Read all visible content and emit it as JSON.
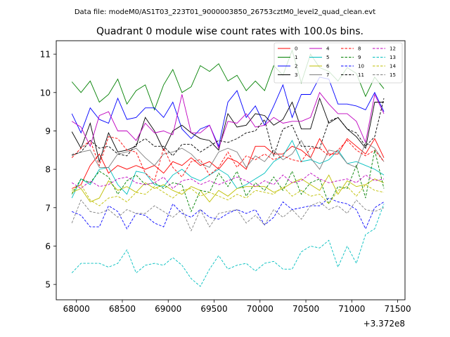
{
  "chart_data": {
    "type": "line",
    "suptitle": "Data file: modeM0/AS1T03_223T01_9000003850_26753cztM0_level2_quad_clean.evt",
    "title": "Quadrant 0 module wise count rates with 100.0s bins.",
    "xlabel": "",
    "ylabel": "",
    "x_offset_label": "+3.372e8",
    "xlim": [
      67780,
      71580
    ],
    "ylim": [
      4.6,
      11.35
    ],
    "xticks": [
      68000,
      68500,
      69000,
      69500,
      70000,
      70500,
      71000,
      71500
    ],
    "yticks": [
      5,
      6,
      7,
      8,
      9,
      10,
      11
    ],
    "grid": false,
    "legend_position": "top-right",
    "x": [
      67950,
      68050,
      68150,
      68250,
      68350,
      68450,
      68550,
      68650,
      68750,
      68850,
      68950,
      69050,
      69150,
      69250,
      69350,
      69450,
      69550,
      69650,
      69750,
      69850,
      69950,
      70050,
      70150,
      70250,
      70350,
      70450,
      70550,
      70650,
      70750,
      70850,
      70950,
      71050,
      71150,
      71250,
      71350
    ],
    "series": [
      {
        "name": "0",
        "color": "#ff0000",
        "dash": "solid",
        "values": [
          7.5,
          7.6,
          8.1,
          8.4,
          7.9,
          8.1,
          8.0,
          8.1,
          8.0,
          8.1,
          7.9,
          8.2,
          8.1,
          8.3,
          8.1,
          8.2,
          8.0,
          8.3,
          8.2,
          8.0,
          8.6,
          8.6,
          8.4,
          8.4,
          8.6,
          8.5,
          8.3,
          8.8,
          8.4,
          8.4,
          8.8,
          8.6,
          8.4,
          8.8,
          8.3
        ]
      },
      {
        "name": "1",
        "color": "#008000",
        "dash": "solid",
        "values": [
          10.28,
          10.0,
          10.3,
          9.75,
          9.95,
          10.35,
          9.7,
          10.05,
          10.2,
          9.55,
          10.2,
          10.6,
          10.0,
          10.15,
          10.7,
          10.55,
          10.75,
          10.3,
          10.45,
          10.05,
          10.3,
          10.05,
          10.7,
          10.45,
          11.1,
          10.25,
          11.0,
          10.65,
          10.55,
          10.3,
          10.65,
          10.5,
          9.9,
          10.4,
          10.1
        ]
      },
      {
        "name": "2",
        "color": "#0000ff",
        "dash": "solid",
        "values": [
          9.45,
          8.95,
          9.6,
          9.3,
          9.2,
          9.85,
          9.3,
          9.35,
          9.6,
          9.6,
          9.35,
          9.75,
          9.05,
          8.8,
          9.05,
          9.15,
          8.6,
          9.75,
          10.05,
          9.35,
          9.65,
          9.15,
          9.65,
          10.2,
          9.35,
          9.95,
          9.95,
          10.4,
          10.35,
          9.7,
          9.7,
          9.65,
          9.55,
          10.0,
          9.5
        ]
      },
      {
        "name": "3",
        "color": "#000000",
        "dash": "solid",
        "values": [
          8.98,
          8.55,
          9.2,
          8.2,
          8.95,
          8.45,
          8.5,
          8.6,
          9.35,
          9.0,
          8.5,
          9.0,
          9.15,
          8.95,
          8.8,
          8.75,
          8.5,
          9.45,
          9.1,
          9.15,
          9.45,
          9.4,
          9.15,
          9.3,
          9.75,
          9.05,
          9.05,
          9.85,
          9.2,
          9.35,
          9.05,
          8.85,
          8.55,
          9.75,
          9.75
        ]
      },
      {
        "name": "4",
        "color": "#bf00bf",
        "dash": "solid",
        "values": [
          9.25,
          9.1,
          8.6,
          9.4,
          9.5,
          9.0,
          9.0,
          8.75,
          9.2,
          8.95,
          9.0,
          8.9,
          9.95,
          8.95,
          8.95,
          9.15,
          8.55,
          9.25,
          9.2,
          9.45,
          9.1,
          9.15,
          9.35,
          9.2,
          9.25,
          9.25,
          9.35,
          10.0,
          9.7,
          9.45,
          9.45,
          9.25,
          8.7,
          9.95,
          9.45
        ]
      },
      {
        "name": "5",
        "color": "#00bfbf",
        "dash": "solid",
        "values": [
          7.25,
          7.75,
          7.6,
          8.0,
          8.05,
          7.6,
          7.35,
          7.95,
          7.9,
          7.6,
          7.55,
          7.85,
          8.0,
          7.8,
          7.7,
          7.85,
          8.0,
          7.85,
          7.5,
          7.6,
          7.75,
          7.9,
          8.2,
          8.35,
          8.75,
          8.2,
          8.25,
          8.15,
          8.25,
          8.5,
          8.15,
          8.2,
          8.1,
          8.0,
          7.85
        ]
      },
      {
        "name": "6",
        "color": "#bfbf00",
        "dash": "solid",
        "values": [
          7.4,
          7.5,
          7.15,
          7.25,
          7.7,
          7.45,
          7.55,
          7.4,
          7.65,
          7.5,
          7.6,
          7.45,
          7.35,
          7.55,
          7.45,
          7.15,
          7.45,
          7.3,
          7.5,
          7.55,
          7.55,
          7.55,
          7.4,
          7.5,
          7.65,
          7.75,
          7.6,
          7.45,
          7.85,
          7.35,
          7.7,
          7.55,
          7.6,
          7.75,
          7.65
        ]
      },
      {
        "name": "7",
        "color": "#7f7f7f",
        "dash": "solid",
        "values": [
          8.35,
          8.45,
          8.5,
          8.05,
          8.05,
          8.4,
          8.45,
          8.55,
          8.3,
          8.1,
          8.4,
          8.45,
          8.55,
          8.4,
          8.15,
          8.05,
          8.45,
          8.55,
          8.45,
          8.05,
          8.35,
          8.2,
          8.5,
          8.25,
          8.4,
          8.75,
          8.3,
          8.0,
          8.5,
          8.45,
          8.15,
          8.05,
          8.7,
          8.55,
          8.2
        ]
      },
      {
        "name": "8",
        "color": "#ff0000",
        "dash": "dashed",
        "values": [
          8.3,
          8.55,
          8.75,
          8.1,
          8.85,
          8.8,
          8.5,
          8.45,
          7.9,
          7.7,
          8.55,
          8.05,
          7.8,
          8.2,
          8.25,
          7.85,
          8.05,
          8.45,
          8.05,
          8.35,
          8.25,
          8.4,
          8.25,
          8.35,
          8.25,
          8.2,
          8.55,
          8.55,
          8.35,
          8.5,
          8.75,
          8.5,
          8.35,
          8.5,
          8.2
        ]
      },
      {
        "name": "9",
        "color": "#008000",
        "dash": "dashed",
        "values": [
          7.35,
          7.75,
          7.65,
          7.95,
          7.8,
          7.35,
          7.7,
          7.85,
          7.6,
          7.65,
          7.5,
          7.65,
          7.6,
          6.9,
          7.45,
          7.4,
          7.9,
          7.55,
          7.95,
          7.3,
          7.65,
          7.45,
          7.8,
          7.45,
          7.95,
          7.35,
          7.65,
          7.75,
          7.1,
          7.55,
          7.5,
          8.1,
          7.25,
          8.5,
          7.5
        ]
      },
      {
        "name": "10",
        "color": "#0000ff",
        "dash": "dashed",
        "values": [
          6.9,
          6.8,
          6.5,
          6.5,
          7.05,
          6.9,
          6.45,
          6.85,
          6.8,
          6.6,
          6.5,
          7.1,
          6.85,
          6.75,
          6.95,
          6.75,
          6.7,
          6.85,
          6.95,
          6.85,
          6.95,
          6.55,
          6.75,
          7.15,
          6.95,
          7.0,
          7.05,
          7.05,
          7.25,
          7.15,
          7.1,
          6.95,
          6.45,
          7.0,
          7.15
        ]
      },
      {
        "name": "11",
        "color": "#000000",
        "dash": "dashed",
        "values": [
          8.38,
          8.45,
          8.75,
          8.55,
          8.6,
          8.4,
          8.35,
          8.65,
          8.8,
          8.6,
          8.6,
          8.35,
          8.65,
          8.65,
          8.45,
          8.6,
          8.75,
          8.7,
          8.8,
          8.95,
          9.0,
          9.3,
          8.35,
          9.05,
          9.15,
          8.6,
          8.6,
          8.55,
          9.25,
          9.35,
          9.05,
          8.95,
          8.6,
          8.85,
          9.85
        ]
      },
      {
        "name": "12",
        "color": "#bf00bf",
        "dash": "dashed",
        "values": [
          7.65,
          7.5,
          7.7,
          7.55,
          7.6,
          7.75,
          7.8,
          7.65,
          7.6,
          7.65,
          7.8,
          7.5,
          7.7,
          7.75,
          7.6,
          7.7,
          7.6,
          7.7,
          7.8,
          7.7,
          7.55,
          7.7,
          7.6,
          7.85,
          7.65,
          7.7,
          7.9,
          7.75,
          7.65,
          7.7,
          7.75,
          7.65,
          7.85,
          7.7,
          7.75
        ]
      },
      {
        "name": "13",
        "color": "#00bfbf",
        "dash": "dashed",
        "values": [
          5.3,
          5.55,
          5.55,
          5.55,
          5.45,
          5.55,
          5.9,
          5.3,
          5.5,
          5.55,
          5.5,
          5.7,
          5.5,
          5.15,
          4.95,
          5.4,
          5.75,
          5.4,
          5.5,
          5.55,
          5.35,
          5.55,
          5.6,
          5.4,
          5.4,
          5.85,
          6.0,
          5.95,
          6.15,
          5.45,
          6.0,
          5.55,
          6.3,
          6.45,
          7.1
        ]
      },
      {
        "name": "14",
        "color": "#bfbf00",
        "dash": "dashed",
        "values": [
          7.45,
          7.6,
          7.2,
          7.05,
          7.25,
          7.3,
          7.15,
          7.4,
          7.35,
          7.55,
          7.4,
          7.25,
          7.45,
          7.5,
          7.3,
          7.4,
          7.3,
          7.2,
          7.35,
          7.25,
          7.45,
          7.4,
          7.35,
          7.55,
          7.3,
          7.45,
          7.3,
          7.35,
          7.1,
          7.45,
          7.55,
          7.3,
          7.6,
          7.45,
          7.4
        ]
      },
      {
        "name": "15",
        "color": "#7f7f7f",
        "dash": "dashed",
        "values": [
          6.6,
          7.2,
          6.9,
          6.85,
          6.95,
          6.75,
          6.95,
          6.85,
          6.85,
          7.05,
          6.9,
          6.75,
          6.95,
          6.4,
          6.95,
          6.5,
          6.85,
          6.9,
          6.95,
          6.6,
          6.8,
          6.55,
          6.95,
          6.75,
          6.95,
          6.7,
          7.05,
          7.15,
          6.95,
          7.05,
          6.85,
          7.2,
          6.95,
          6.9,
          7.0
        ]
      }
    ]
  }
}
